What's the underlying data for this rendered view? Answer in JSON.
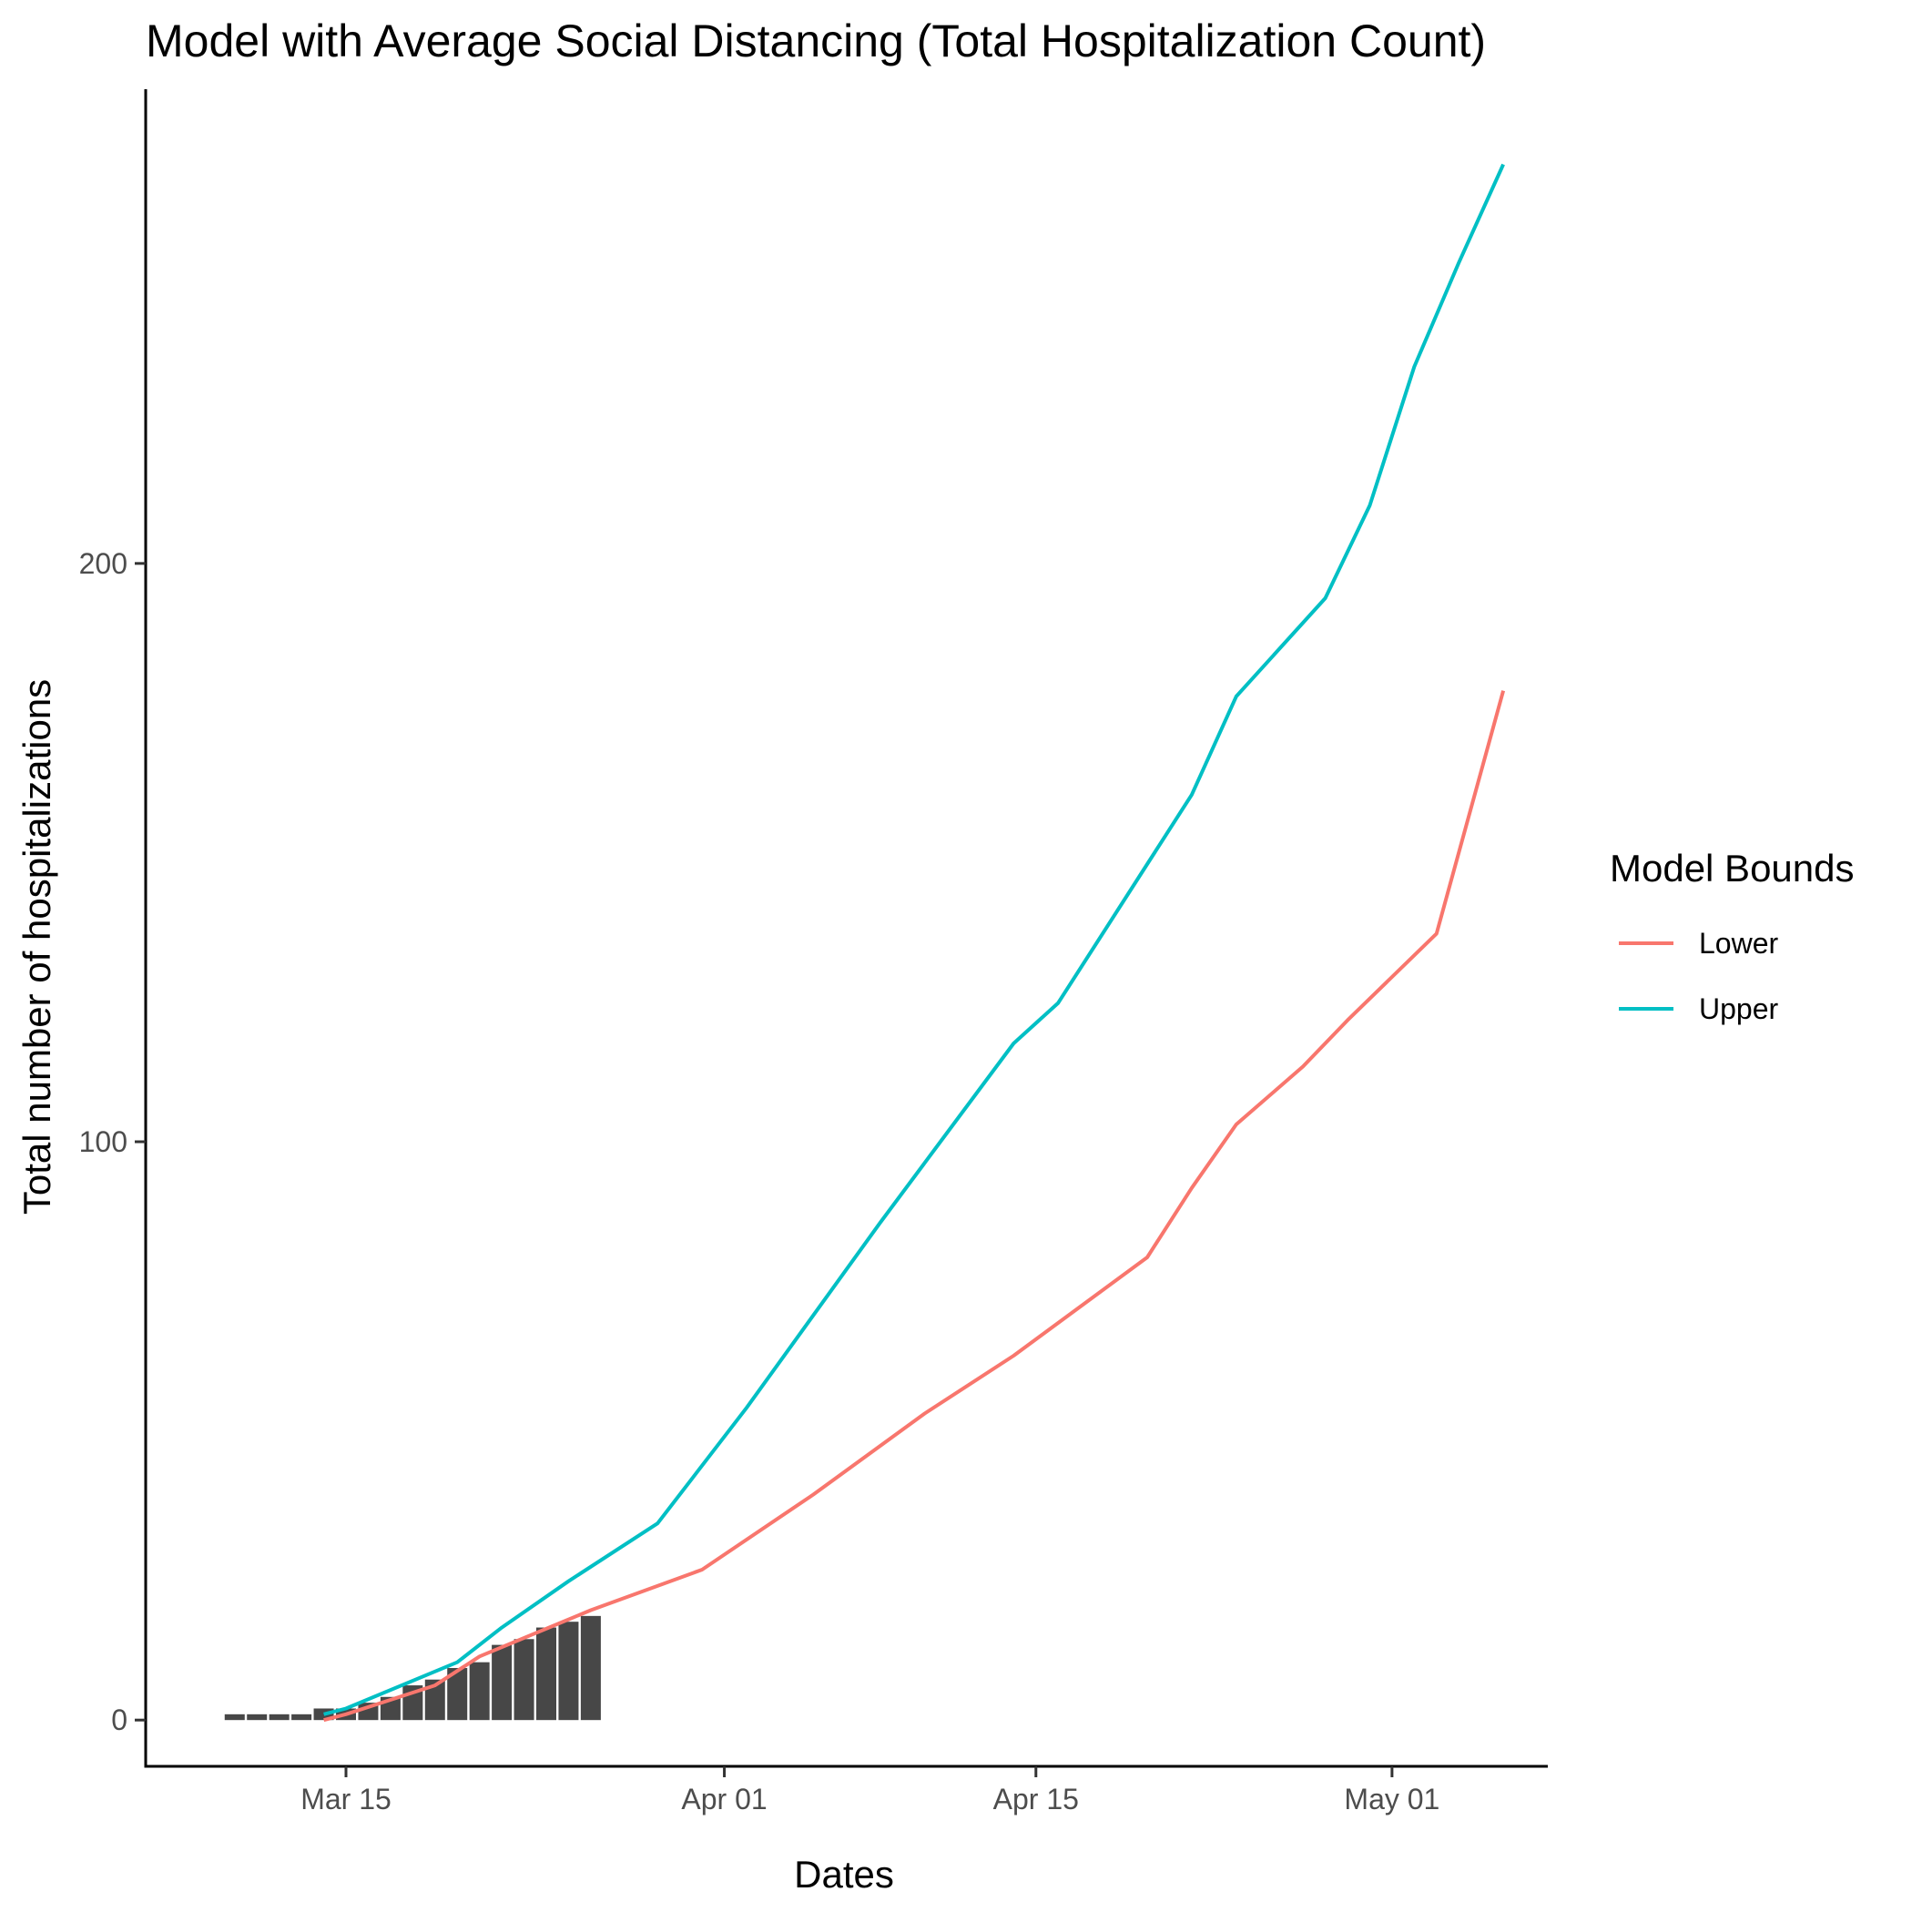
{
  "chart_data": {
    "type": "bar+line",
    "title": "Model with Average Social Distancing (Total Hospitalization Count)",
    "xlabel": "Dates",
    "ylabel": "Total number of hospitalizations",
    "x_ticks": [
      {
        "date": "2020-03-15",
        "label": "Mar 15"
      },
      {
        "date": "2020-04-01",
        "label": "Apr 01"
      },
      {
        "date": "2020-04-15",
        "label": "Apr 15"
      },
      {
        "date": "2020-05-01",
        "label": "May 01"
      }
    ],
    "y_ticks": [
      0,
      100,
      200
    ],
    "xlim": [
      "2020-03-06",
      "2020-05-08"
    ],
    "ylim": [
      -8,
      282
    ],
    "grid": false,
    "bars": {
      "color": "#474747",
      "data": [
        {
          "date": "2020-03-10",
          "value": 1
        },
        {
          "date": "2020-03-11",
          "value": 1
        },
        {
          "date": "2020-03-12",
          "value": 1
        },
        {
          "date": "2020-03-13",
          "value": 1
        },
        {
          "date": "2020-03-14",
          "value": 2
        },
        {
          "date": "2020-03-15",
          "value": 2
        },
        {
          "date": "2020-03-16",
          "value": 3
        },
        {
          "date": "2020-03-17",
          "value": 4
        },
        {
          "date": "2020-03-18",
          "value": 6
        },
        {
          "date": "2020-03-19",
          "value": 7
        },
        {
          "date": "2020-03-20",
          "value": 9
        },
        {
          "date": "2020-03-21",
          "value": 10
        },
        {
          "date": "2020-03-22",
          "value": 13
        },
        {
          "date": "2020-03-23",
          "value": 14
        },
        {
          "date": "2020-03-24",
          "value": 16
        },
        {
          "date": "2020-03-25",
          "value": 17
        },
        {
          "date": "2020-03-26",
          "value": 18
        }
      ]
    },
    "legend": {
      "title": "Model Bounds",
      "position": "right"
    },
    "series": [
      {
        "name": "Lower",
        "color": "#F8766D",
        "points": [
          [
            "2020-03-14",
            0
          ],
          [
            "2020-03-15",
            1
          ],
          [
            "2020-03-19",
            6
          ],
          [
            "2020-03-21",
            11
          ],
          [
            "2020-03-26",
            19
          ],
          [
            "2020-03-31",
            26
          ],
          [
            "2020-04-05",
            39
          ],
          [
            "2020-04-10",
            53
          ],
          [
            "2020-04-14",
            63
          ],
          [
            "2020-04-20",
            80
          ],
          [
            "2020-04-22",
            92
          ],
          [
            "2020-04-24",
            103
          ],
          [
            "2020-04-27",
            113
          ],
          [
            "2020-04-29",
            121
          ],
          [
            "2020-05-03",
            136
          ],
          [
            "2020-05-06",
            178
          ]
        ]
      },
      {
        "name": "Upper",
        "color": "#00BFC4",
        "points": [
          [
            "2020-03-14",
            1
          ],
          [
            "2020-03-15",
            2
          ],
          [
            "2020-03-20",
            10
          ],
          [
            "2020-03-22",
            16
          ],
          [
            "2020-03-25",
            24
          ],
          [
            "2020-03-29",
            34
          ],
          [
            "2020-04-02",
            54
          ],
          [
            "2020-04-08",
            86
          ],
          [
            "2020-04-14",
            117
          ],
          [
            "2020-04-16",
            124
          ],
          [
            "2020-04-22",
            160
          ],
          [
            "2020-04-24",
            177
          ],
          [
            "2020-04-28",
            194
          ],
          [
            "2020-04-30",
            210
          ],
          [
            "2020-05-02",
            234
          ],
          [
            "2020-05-04",
            252
          ],
          [
            "2020-05-06",
            269
          ]
        ]
      }
    ]
  }
}
